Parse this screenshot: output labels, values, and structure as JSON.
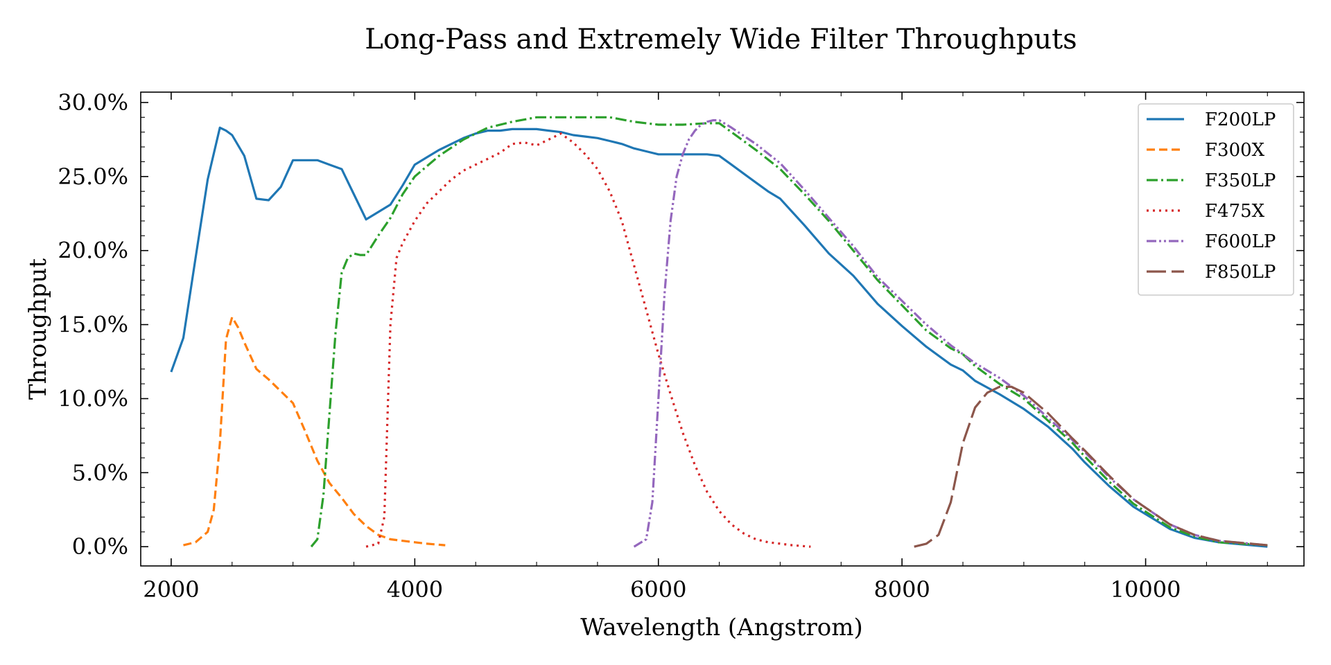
{
  "chart_data": {
    "type": "line",
    "title": "Long-Pass and Extremely Wide Filter Throughputs",
    "xlabel": "Wavelength (Angstrom)",
    "ylabel": "Throughput",
    "xlim": [
      1750,
      11300
    ],
    "ylim": [
      -0.013,
      0.307
    ],
    "x_ticks": [
      2000,
      4000,
      6000,
      8000,
      10000
    ],
    "x_tick_labels": [
      "2000",
      "4000",
      "6000",
      "8000",
      "10000"
    ],
    "y_ticks": [
      0.0,
      0.05,
      0.1,
      0.15,
      0.2,
      0.25,
      0.3
    ],
    "y_tick_labels": [
      "0.0%",
      "5.0%",
      "10.0%",
      "15.0%",
      "20.0%",
      "25.0%",
      "30.0%"
    ],
    "grid": false,
    "legend_position": "top-right",
    "series": [
      {
        "name": "F200LP",
        "color": "#1f77b4",
        "dash": "",
        "x": [
          2000,
          2100,
          2200,
          2300,
          2400,
          2450,
          2500,
          2600,
          2700,
          2800,
          2900,
          3000,
          3100,
          3200,
          3300,
          3400,
          3500,
          3600,
          3700,
          3800,
          3900,
          4000,
          4100,
          4200,
          4300,
          4400,
          4500,
          4600,
          4700,
          4800,
          4900,
          5000,
          5100,
          5200,
          5300,
          5400,
          5500,
          5600,
          5700,
          5800,
          5900,
          6000,
          6100,
          6200,
          6300,
          6400,
          6500,
          6600,
          6700,
          6800,
          6900,
          7000,
          7200,
          7400,
          7600,
          7800,
          8000,
          8200,
          8400,
          8500,
          8600,
          8800,
          9000,
          9200,
          9400,
          9500,
          9700,
          9900,
          10200,
          10400,
          10600,
          11000
        ],
        "y": [
          0.118,
          0.141,
          0.195,
          0.248,
          0.283,
          0.281,
          0.278,
          0.264,
          0.235,
          0.234,
          0.243,
          0.261,
          0.261,
          0.261,
          0.258,
          0.255,
          0.238,
          0.221,
          0.226,
          0.231,
          0.244,
          0.258,
          0.263,
          0.268,
          0.272,
          0.276,
          0.279,
          0.281,
          0.281,
          0.282,
          0.282,
          0.282,
          0.281,
          0.28,
          0.278,
          0.277,
          0.276,
          0.274,
          0.272,
          0.269,
          0.267,
          0.265,
          0.265,
          0.265,
          0.265,
          0.265,
          0.264,
          0.258,
          0.252,
          0.246,
          0.24,
          0.235,
          0.217,
          0.198,
          0.183,
          0.164,
          0.149,
          0.135,
          0.123,
          0.119,
          0.112,
          0.103,
          0.093,
          0.081,
          0.066,
          0.057,
          0.041,
          0.027,
          0.012,
          0.006,
          0.003,
          0.0
        ]
      },
      {
        "name": "F300X",
        "color": "#ff7f0e",
        "dash": "12,6",
        "x": [
          2100,
          2200,
          2300,
          2350,
          2400,
          2450,
          2500,
          2550,
          2600,
          2700,
          2800,
          2900,
          3000,
          3100,
          3200,
          3300,
          3400,
          3500,
          3600,
          3700,
          3800,
          3900,
          4000,
          4100,
          4250
        ],
        "y": [
          0.001,
          0.003,
          0.01,
          0.025,
          0.07,
          0.14,
          0.155,
          0.148,
          0.138,
          0.12,
          0.113,
          0.105,
          0.097,
          0.078,
          0.058,
          0.043,
          0.033,
          0.022,
          0.014,
          0.008,
          0.005,
          0.004,
          0.003,
          0.002,
          0.001
        ]
      },
      {
        "name": "F350LP",
        "color": "#2ca02c",
        "dash": "16,5,3,5",
        "x": [
          3150,
          3200,
          3250,
          3300,
          3350,
          3400,
          3450,
          3500,
          3550,
          3600,
          3700,
          3800,
          3900,
          4000,
          4200,
          4400,
          4600,
          4800,
          5000,
          5200,
          5400,
          5600,
          5800,
          6000,
          6200,
          6400,
          6500,
          6600,
          6800,
          7000,
          7200,
          7400,
          7600,
          7800,
          8000,
          8200,
          8400,
          8500,
          8600,
          8800,
          9000,
          9200,
          9400,
          9500,
          9700,
          9900,
          10200,
          10400,
          10600,
          11000
        ],
        "y": [
          0.0,
          0.005,
          0.035,
          0.09,
          0.145,
          0.185,
          0.195,
          0.198,
          0.197,
          0.197,
          0.21,
          0.222,
          0.238,
          0.25,
          0.264,
          0.275,
          0.283,
          0.287,
          0.29,
          0.29,
          0.29,
          0.29,
          0.287,
          0.285,
          0.285,
          0.286,
          0.286,
          0.28,
          0.268,
          0.255,
          0.238,
          0.22,
          0.2,
          0.18,
          0.163,
          0.146,
          0.134,
          0.13,
          0.122,
          0.11,
          0.1,
          0.085,
          0.07,
          0.061,
          0.044,
          0.029,
          0.013,
          0.007,
          0.003,
          0.001
        ]
      },
      {
        "name": "F475X",
        "color": "#d62728",
        "dash": "3,6",
        "x": [
          3600,
          3700,
          3750,
          3800,
          3850,
          3900,
          4000,
          4100,
          4200,
          4300,
          4400,
          4500,
          4600,
          4700,
          4800,
          4900,
          5000,
          5100,
          5200,
          5300,
          5400,
          5500,
          5600,
          5700,
          5800,
          5900,
          6000,
          6100,
          6200,
          6300,
          6400,
          6500,
          6600,
          6700,
          6800,
          6900,
          7000,
          7100,
          7250
        ],
        "y": [
          0.0,
          0.002,
          0.02,
          0.15,
          0.195,
          0.205,
          0.22,
          0.232,
          0.24,
          0.248,
          0.254,
          0.258,
          0.262,
          0.266,
          0.272,
          0.273,
          0.271,
          0.275,
          0.279,
          0.273,
          0.265,
          0.255,
          0.24,
          0.22,
          0.19,
          0.16,
          0.13,
          0.103,
          0.077,
          0.055,
          0.037,
          0.024,
          0.015,
          0.009,
          0.005,
          0.003,
          0.002,
          0.001,
          0.0
        ]
      },
      {
        "name": "F600LP",
        "color": "#9467bd",
        "dash": "14,4,3,4,3,4",
        "x": [
          5800,
          5900,
          5950,
          6000,
          6050,
          6100,
          6150,
          6200,
          6250,
          6300,
          6350,
          6400,
          6450,
          6500,
          6600,
          6800,
          7000,
          7200,
          7400,
          7600,
          7800,
          8000,
          8200,
          8400,
          8500,
          8600,
          8800,
          9000,
          9200,
          9400,
          9500,
          9700,
          9900,
          10200,
          10400,
          10600,
          11000
        ],
        "y": [
          0.0,
          0.005,
          0.03,
          0.1,
          0.17,
          0.22,
          0.25,
          0.265,
          0.275,
          0.281,
          0.285,
          0.287,
          0.288,
          0.288,
          0.283,
          0.272,
          0.259,
          0.241,
          0.222,
          0.203,
          0.182,
          0.166,
          0.15,
          0.136,
          0.13,
          0.124,
          0.114,
          0.102,
          0.087,
          0.072,
          0.064,
          0.047,
          0.032,
          0.015,
          0.008,
          0.004,
          0.001
        ]
      },
      {
        "name": "F850LP",
        "color": "#8c564b",
        "dash": "28,8",
        "x": [
          8100,
          8200,
          8300,
          8400,
          8500,
          8600,
          8700,
          8800,
          8900,
          9000,
          9200,
          9400,
          9500,
          9700,
          9900,
          10200,
          10400,
          10600,
          11000
        ],
        "y": [
          0.0,
          0.002,
          0.008,
          0.03,
          0.07,
          0.094,
          0.104,
          0.108,
          0.108,
          0.104,
          0.09,
          0.073,
          0.065,
          0.048,
          0.032,
          0.015,
          0.008,
          0.004,
          0.001
        ]
      }
    ]
  }
}
